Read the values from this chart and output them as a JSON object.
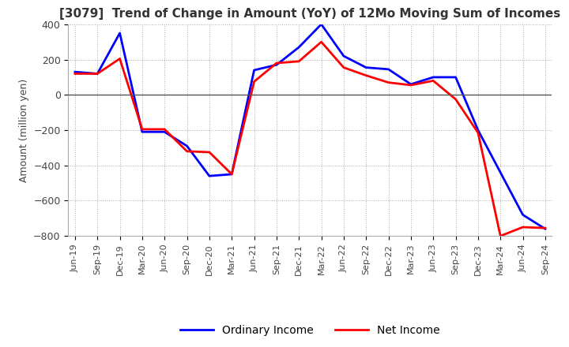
{
  "title": "[3079]  Trend of Change in Amount (YoY) of 12Mo Moving Sum of Incomes",
  "ylabel": "Amount (million yen)",
  "ylim": [
    -800,
    400
  ],
  "yticks": [
    -800,
    -600,
    -400,
    -200,
    0,
    200,
    400
  ],
  "x_labels": [
    "Jun-19",
    "Sep-19",
    "Dec-19",
    "Mar-20",
    "Jun-20",
    "Sep-20",
    "Dec-20",
    "Mar-21",
    "Jun-21",
    "Sep-21",
    "Dec-21",
    "Mar-22",
    "Jun-22",
    "Sep-22",
    "Dec-22",
    "Mar-23",
    "Jun-23",
    "Sep-23",
    "Dec-23",
    "Mar-24",
    "Jun-24",
    "Sep-24"
  ],
  "ordinary_income": [
    130,
    120,
    350,
    -210,
    -210,
    -290,
    -460,
    -450,
    140,
    170,
    270,
    400,
    220,
    155,
    145,
    60,
    100,
    100,
    -200,
    -440,
    -680,
    -760
  ],
  "net_income": [
    120,
    120,
    205,
    -195,
    -195,
    -320,
    -325,
    -450,
    75,
    180,
    190,
    300,
    155,
    110,
    70,
    55,
    80,
    -25,
    -215,
    -800,
    -750,
    -755
  ],
  "ordinary_color": "#0000ff",
  "net_color": "#ff0000",
  "ordinary_label": "Ordinary Income",
  "net_label": "Net Income",
  "background_color": "#ffffff",
  "grid_color": "#aaaaaa",
  "zero_line_color": "#555555",
  "title_color": "#333333",
  "title_fontsize": 11,
  "tick_fontsize": 8,
  "ylabel_fontsize": 9,
  "legend_fontsize": 10,
  "linewidth": 2.0
}
